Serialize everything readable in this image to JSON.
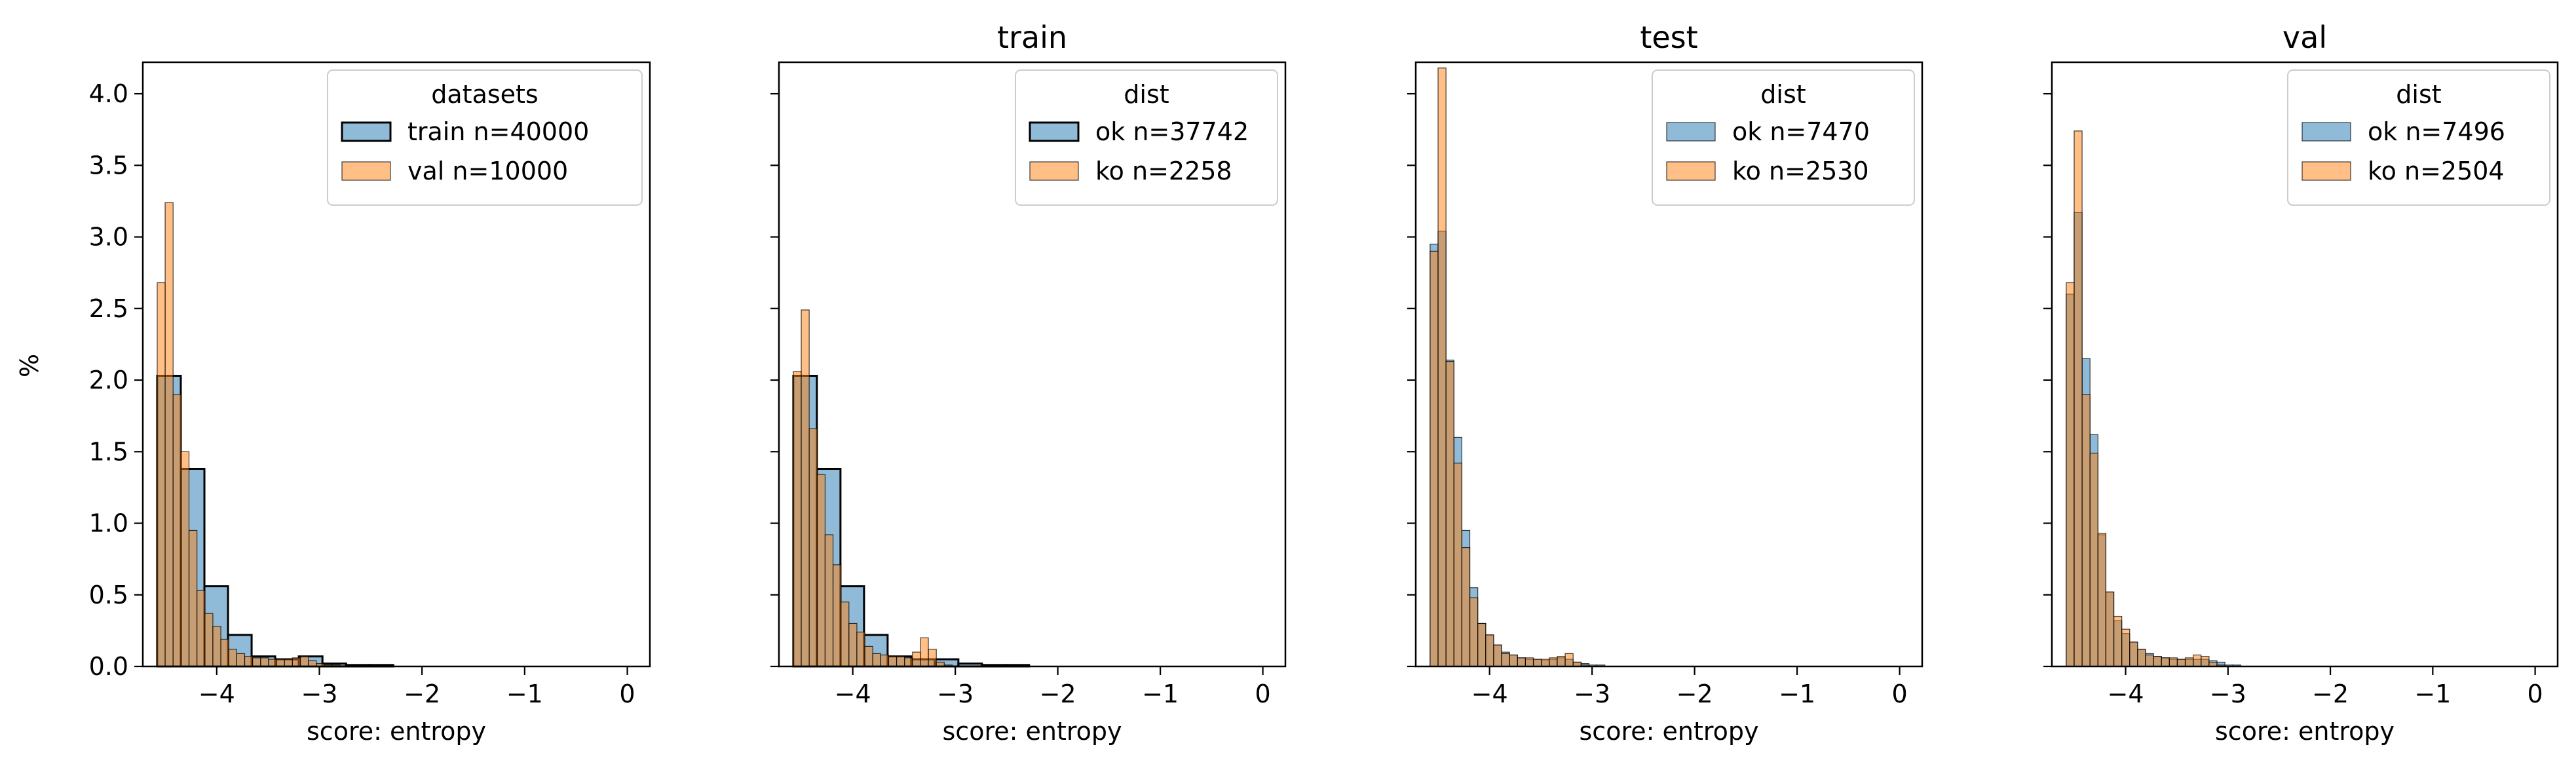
{
  "figure": {
    "ylabel": "%",
    "xlabel": "score: entropy"
  },
  "chart_data": [
    {
      "type": "bar",
      "title": "",
      "xlabel": "score: entropy",
      "ylabel": "%",
      "xlim": [
        -4.72,
        0.22
      ],
      "ylim": [
        0,
        4.22
      ],
      "xticks": [
        -4,
        -3,
        -2,
        -1,
        0
      ],
      "yticks": [
        0.0,
        0.5,
        1.0,
        1.5,
        2.0,
        2.5,
        3.0,
        3.5,
        4.0
      ],
      "legend": {
        "title": "datasets",
        "placement": "top-right"
      },
      "series": [
        {
          "name": "train n=40000",
          "color": "#1f77b4",
          "edge": "bold",
          "x_start": -4.58,
          "bin_width": 0.23,
          "values": [
            2.03,
            1.38,
            0.56,
            0.22,
            0.07,
            0.05,
            0.07,
            0.02,
            0.01,
            0.01,
            0.0,
            0.0,
            0.0,
            0.0,
            0.0,
            0.0,
            0.0,
            0.0,
            0.0,
            0.0
          ]
        },
        {
          "name": "val n=10000",
          "color": "#ff7f0e",
          "edge": "thin",
          "x_start": -4.58,
          "bin_width": 0.0775,
          "values": [
            2.68,
            3.24,
            1.9,
            1.5,
            0.95,
            0.53,
            0.37,
            0.28,
            0.19,
            0.12,
            0.09,
            0.07,
            0.06,
            0.06,
            0.05,
            0.05,
            0.05,
            0.06,
            0.07,
            0.04,
            0.02,
            0.01,
            0.01
          ]
        }
      ]
    },
    {
      "type": "bar",
      "title": "train",
      "xlabel": "score: entropy",
      "ylabel": "",
      "xlim": [
        -4.72,
        0.22
      ],
      "ylim": [
        0,
        4.22
      ],
      "xticks": [
        -4,
        -3,
        -2,
        -1,
        0
      ],
      "legend": {
        "title": "dist",
        "placement": "top-right"
      },
      "series": [
        {
          "name": "ok n=37742",
          "color": "#1f77b4",
          "edge": "bold",
          "x_start": -4.58,
          "bin_width": 0.23,
          "values": [
            2.03,
            1.38,
            0.56,
            0.22,
            0.07,
            0.05,
            0.05,
            0.02,
            0.01,
            0.01,
            0.0,
            0.0,
            0.0,
            0.0,
            0.0,
            0.0,
            0.0,
            0.0,
            0.0,
            0.0
          ]
        },
        {
          "name": "ko n=2258",
          "color": "#ff7f0e",
          "edge": "thin",
          "x_start": -4.58,
          "bin_width": 0.0775,
          "values": [
            2.06,
            2.49,
            1.66,
            1.34,
            0.92,
            0.71,
            0.45,
            0.3,
            0.24,
            0.14,
            0.09,
            0.08,
            0.07,
            0.07,
            0.06,
            0.1,
            0.2,
            0.12,
            0.03,
            0.01,
            0.0,
            0.0
          ]
        }
      ]
    },
    {
      "type": "bar",
      "title": "test",
      "xlabel": "score: entropy",
      "ylabel": "",
      "xlim": [
        -4.72,
        0.22
      ],
      "ylim": [
        0,
        4.22
      ],
      "xticks": [
        -4,
        -3,
        -2,
        -1,
        0
      ],
      "legend": {
        "title": "dist",
        "placement": "top-right"
      },
      "series": [
        {
          "name": "ok n=7470",
          "color": "#1f77b4",
          "edge": "thin",
          "x_start": -4.58,
          "bin_width": 0.0775,
          "values": [
            2.95,
            3.04,
            2.14,
            1.6,
            0.95,
            0.55,
            0.3,
            0.22,
            0.15,
            0.1,
            0.08,
            0.06,
            0.05,
            0.05,
            0.04,
            0.05,
            0.06,
            0.05,
            0.03,
            0.02,
            0.01,
            0.01,
            0.0
          ]
        },
        {
          "name": "ko n=2530",
          "color": "#ff7f0e",
          "edge": "thin",
          "x_start": -4.58,
          "bin_width": 0.0775,
          "values": [
            2.9,
            4.18,
            2.13,
            1.42,
            0.83,
            0.48,
            0.3,
            0.22,
            0.15,
            0.09,
            0.08,
            0.06,
            0.06,
            0.05,
            0.05,
            0.06,
            0.07,
            0.09,
            0.03,
            0.01,
            0.0,
            0.0
          ]
        }
      ]
    },
    {
      "type": "bar",
      "title": "val",
      "xlabel": "score: entropy",
      "ylabel": "",
      "xlim": [
        -4.72,
        0.22
      ],
      "ylim": [
        0,
        4.22
      ],
      "xticks": [
        -4,
        -3,
        -2,
        -1,
        0
      ],
      "legend": {
        "title": "dist",
        "placement": "top-right"
      },
      "series": [
        {
          "name": "ok n=7496",
          "color": "#1f77b4",
          "edge": "thin",
          "x_start": -4.58,
          "bin_width": 0.0775,
          "values": [
            2.6,
            3.17,
            2.15,
            1.62,
            0.92,
            0.52,
            0.32,
            0.23,
            0.17,
            0.12,
            0.09,
            0.07,
            0.06,
            0.05,
            0.05,
            0.05,
            0.05,
            0.05,
            0.04,
            0.03,
            0.01,
            0.01,
            0.0
          ]
        },
        {
          "name": "ko n=2504",
          "color": "#ff7f0e",
          "edge": "thin",
          "x_start": -4.58,
          "bin_width": 0.0775,
          "values": [
            2.68,
            3.74,
            1.9,
            1.49,
            0.93,
            0.52,
            0.35,
            0.26,
            0.17,
            0.12,
            0.08,
            0.07,
            0.06,
            0.06,
            0.05,
            0.06,
            0.08,
            0.07,
            0.03,
            0.01,
            0.0,
            0.0
          ]
        }
      ]
    }
  ]
}
